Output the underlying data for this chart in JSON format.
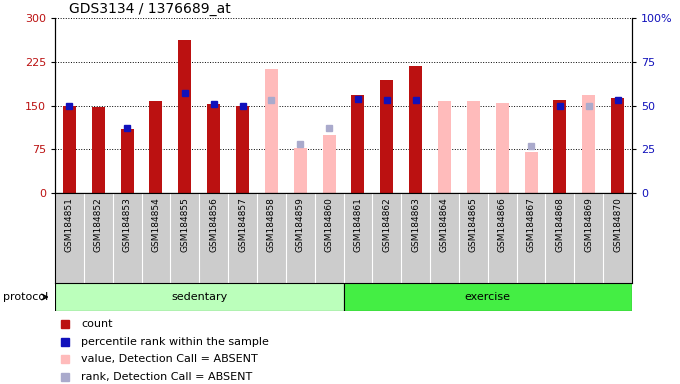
{
  "title": "GDS3134 / 1376689_at",
  "samples": [
    "GSM184851",
    "GSM184852",
    "GSM184853",
    "GSM184854",
    "GSM184855",
    "GSM184856",
    "GSM184857",
    "GSM184858",
    "GSM184859",
    "GSM184860",
    "GSM184861",
    "GSM184862",
    "GSM184863",
    "GSM184864",
    "GSM184865",
    "GSM184866",
    "GSM184867",
    "GSM184868",
    "GSM184869",
    "GSM184870"
  ],
  "count": [
    150,
    148,
    110,
    158,
    262,
    153,
    150,
    null,
    null,
    null,
    168,
    193,
    218,
    null,
    null,
    null,
    null,
    160,
    null,
    163
  ],
  "percentile": [
    50,
    null,
    37,
    null,
    57,
    51,
    50,
    null,
    null,
    null,
    54,
    53,
    53,
    null,
    null,
    null,
    null,
    50,
    null,
    53
  ],
  "absent_value": [
    null,
    null,
    null,
    null,
    null,
    null,
    null,
    213,
    77,
    100,
    null,
    null,
    null,
    157,
    157,
    155,
    70,
    null,
    168,
    null
  ],
  "absent_rank": [
    null,
    null,
    null,
    null,
    null,
    null,
    null,
    53,
    28,
    37,
    null,
    null,
    null,
    null,
    null,
    null,
    27,
    null,
    50,
    null
  ],
  "ylim_left": [
    0,
    300
  ],
  "ylim_right": [
    0,
    100
  ],
  "yticks_left": [
    0,
    75,
    150,
    225,
    300
  ],
  "yticks_right": [
    0,
    25,
    50,
    75,
    100
  ],
  "bar_color_red": "#bb1111",
  "bar_color_pink": "#ffbbbb",
  "dot_color_blue": "#1111bb",
  "dot_color_lightblue": "#aaaacc",
  "bg_plot": "#ffffff",
  "bg_xtick": "#cccccc",
  "bg_sed_light": "#bbffbb",
  "bg_exc_dark": "#44ee44",
  "protocol_label": "protocol",
  "sed_label": "sedentary",
  "exc_label": "exercise",
  "legend_count": "count",
  "legend_pct": "percentile rank within the sample",
  "legend_absent_val": "value, Detection Call = ABSENT",
  "legend_absent_rank": "rank, Detection Call = ABSENT"
}
